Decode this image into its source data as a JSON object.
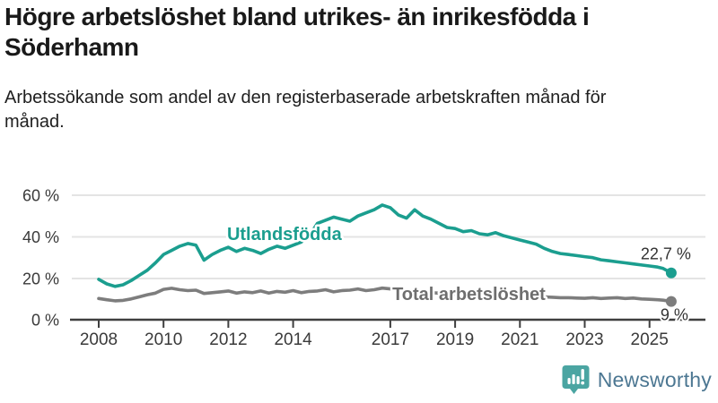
{
  "header": {
    "title": "Högre arbetslöshet bland utrikes- än inrikesfödda i Söderhamn",
    "subtitle": "Arbetssökande som andel av den registerbaserade arbetskraften månad för månad."
  },
  "footer": {
    "brand": "Newsworthy"
  },
  "colors": {
    "series_foreign": "#1b9e8f",
    "series_total": "#7d7d7d",
    "series_total_label": "#6e6e6e",
    "grid": "#e4e4e4",
    "axis": "#3f3f3f",
    "tick_text": "#3a3a3a",
    "value_text": "#333333",
    "logo_icon": "#4ba5a2",
    "logo_text": "#4c7792"
  },
  "chart_data": {
    "type": "line",
    "title": "",
    "xlabel": "",
    "ylabel": "",
    "x_unit": "year (monthly data)",
    "y_unit": "%",
    "ylim": [
      0,
      62
    ],
    "grid": "horizontal",
    "x_ticks": [
      2008,
      2010,
      2012,
      2014,
      2017,
      2019,
      2021,
      2023,
      2025
    ],
    "y_gridlines": [
      {
        "v": 0,
        "label": "0 %"
      },
      {
        "v": 20,
        "label": "20 %"
      },
      {
        "v": 40,
        "label": "40 %"
      },
      {
        "v": 60,
        "label": "60 %"
      }
    ],
    "series": [
      {
        "name": "Utlandsfödda",
        "color": "#1b9e8f",
        "label_color": "#1b9e8f",
        "end_label": "22,7 %",
        "end_value": 22.7,
        "label_pos": {
          "year": 2011.96,
          "pct": 41.5
        },
        "points": [
          [
            2008.0,
            19.6
          ],
          [
            2008.25,
            17.4
          ],
          [
            2008.5,
            16.2
          ],
          [
            2008.75,
            17.0
          ],
          [
            2009.0,
            19.0
          ],
          [
            2009.25,
            21.5
          ],
          [
            2009.5,
            24.0
          ],
          [
            2009.75,
            27.5
          ],
          [
            2010.0,
            31.5
          ],
          [
            2010.25,
            33.5
          ],
          [
            2010.5,
            35.5
          ],
          [
            2010.75,
            36.8
          ],
          [
            2011.0,
            36.0
          ],
          [
            2011.25,
            28.8
          ],
          [
            2011.5,
            31.5
          ],
          [
            2011.75,
            33.5
          ],
          [
            2012.0,
            35.0
          ],
          [
            2012.25,
            33.0
          ],
          [
            2012.5,
            34.5
          ],
          [
            2012.75,
            33.5
          ],
          [
            2013.0,
            32.0
          ],
          [
            2013.25,
            34.0
          ],
          [
            2013.5,
            35.5
          ],
          [
            2013.75,
            34.5
          ],
          [
            2014.0,
            36.0
          ],
          [
            2014.25,
            37.5
          ],
          [
            2014.5,
            40.5
          ],
          [
            2014.75,
            46.5
          ],
          [
            2015.0,
            48.0
          ],
          [
            2015.25,
            49.5
          ],
          [
            2015.5,
            48.5
          ],
          [
            2015.75,
            47.5
          ],
          [
            2016.0,
            50.0
          ],
          [
            2016.25,
            51.5
          ],
          [
            2016.5,
            53.0
          ],
          [
            2016.75,
            55.3
          ],
          [
            2017.0,
            54.0
          ],
          [
            2017.25,
            50.5
          ],
          [
            2017.5,
            49.0
          ],
          [
            2017.75,
            53.0
          ],
          [
            2018.0,
            50.0
          ],
          [
            2018.25,
            48.5
          ],
          [
            2018.5,
            46.5
          ],
          [
            2018.75,
            44.5
          ],
          [
            2019.0,
            44.0
          ],
          [
            2019.25,
            42.5
          ],
          [
            2019.5,
            43.0
          ],
          [
            2019.75,
            41.5
          ],
          [
            2020.0,
            41.0
          ],
          [
            2020.25,
            42.0
          ],
          [
            2020.5,
            40.5
          ],
          [
            2020.75,
            39.5
          ],
          [
            2021.0,
            38.5
          ],
          [
            2021.25,
            37.5
          ],
          [
            2021.5,
            36.5
          ],
          [
            2021.75,
            34.5
          ],
          [
            2022.0,
            33.0
          ],
          [
            2022.25,
            32.0
          ],
          [
            2022.5,
            31.5
          ],
          [
            2022.75,
            31.0
          ],
          [
            2023.0,
            30.5
          ],
          [
            2023.25,
            30.0
          ],
          [
            2023.5,
            29.0
          ],
          [
            2023.75,
            28.5
          ],
          [
            2024.0,
            28.0
          ],
          [
            2024.25,
            27.5
          ],
          [
            2024.5,
            27.0
          ],
          [
            2024.75,
            26.5
          ],
          [
            2025.0,
            26.0
          ],
          [
            2025.25,
            25.5
          ],
          [
            2025.42,
            24.8
          ],
          [
            2025.58,
            23.5
          ],
          [
            2025.67,
            22.7
          ]
        ]
      },
      {
        "name": "Total arbetslöshet",
        "color": "#7d7d7d",
        "label_color": "#6e6e6e",
        "end_label": "9 %",
        "end_value": 9.0,
        "label_pos": {
          "year": 2017.06,
          "pct": 12.7
        },
        "points": [
          [
            2008.0,
            10.4
          ],
          [
            2008.25,
            9.8
          ],
          [
            2008.5,
            9.3
          ],
          [
            2008.75,
            9.5
          ],
          [
            2009.0,
            10.2
          ],
          [
            2009.25,
            11.2
          ],
          [
            2009.5,
            12.2
          ],
          [
            2009.75,
            13.0
          ],
          [
            2010.0,
            14.8
          ],
          [
            2010.25,
            15.3
          ],
          [
            2010.5,
            14.6
          ],
          [
            2010.75,
            14.2
          ],
          [
            2011.0,
            14.4
          ],
          [
            2011.25,
            12.8
          ],
          [
            2011.5,
            13.2
          ],
          [
            2011.75,
            13.6
          ],
          [
            2012.0,
            14.0
          ],
          [
            2012.25,
            13.0
          ],
          [
            2012.5,
            13.6
          ],
          [
            2012.75,
            13.2
          ],
          [
            2013.0,
            14.0
          ],
          [
            2013.25,
            13.0
          ],
          [
            2013.5,
            13.8
          ],
          [
            2013.75,
            13.4
          ],
          [
            2014.0,
            14.2
          ],
          [
            2014.25,
            13.2
          ],
          [
            2014.5,
            13.8
          ],
          [
            2014.75,
            14.0
          ],
          [
            2015.0,
            14.6
          ],
          [
            2015.25,
            13.6
          ],
          [
            2015.5,
            14.2
          ],
          [
            2015.75,
            14.4
          ],
          [
            2016.0,
            15.0
          ],
          [
            2016.25,
            14.2
          ],
          [
            2016.5,
            14.6
          ],
          [
            2016.75,
            15.4
          ],
          [
            2017.0,
            15.0
          ],
          [
            2017.25,
            14.4
          ],
          [
            2017.5,
            14.0
          ],
          [
            2017.75,
            14.4
          ],
          [
            2018.0,
            13.8
          ],
          [
            2018.25,
            13.2
          ],
          [
            2018.5,
            13.0
          ],
          [
            2018.75,
            12.6
          ],
          [
            2019.0,
            12.4
          ],
          [
            2019.25,
            12.0
          ],
          [
            2019.5,
            12.2
          ],
          [
            2019.75,
            11.8
          ],
          [
            2020.0,
            12.0
          ],
          [
            2020.25,
            12.8
          ],
          [
            2020.5,
            12.4
          ],
          [
            2020.75,
            12.2
          ],
          [
            2021.0,
            12.0
          ],
          [
            2021.25,
            11.6
          ],
          [
            2021.5,
            11.4
          ],
          [
            2021.75,
            11.2
          ],
          [
            2022.0,
            11.0
          ],
          [
            2022.25,
            10.8
          ],
          [
            2022.5,
            10.8
          ],
          [
            2022.75,
            10.6
          ],
          [
            2023.0,
            10.5
          ],
          [
            2023.25,
            10.8
          ],
          [
            2023.5,
            10.4
          ],
          [
            2023.75,
            10.6
          ],
          [
            2024.0,
            10.8
          ],
          [
            2024.25,
            10.4
          ],
          [
            2024.5,
            10.6
          ],
          [
            2024.75,
            10.2
          ],
          [
            2025.0,
            10.0
          ],
          [
            2025.25,
            9.8
          ],
          [
            2025.42,
            9.6
          ],
          [
            2025.58,
            9.2
          ],
          [
            2025.67,
            9.0
          ]
        ]
      }
    ]
  }
}
